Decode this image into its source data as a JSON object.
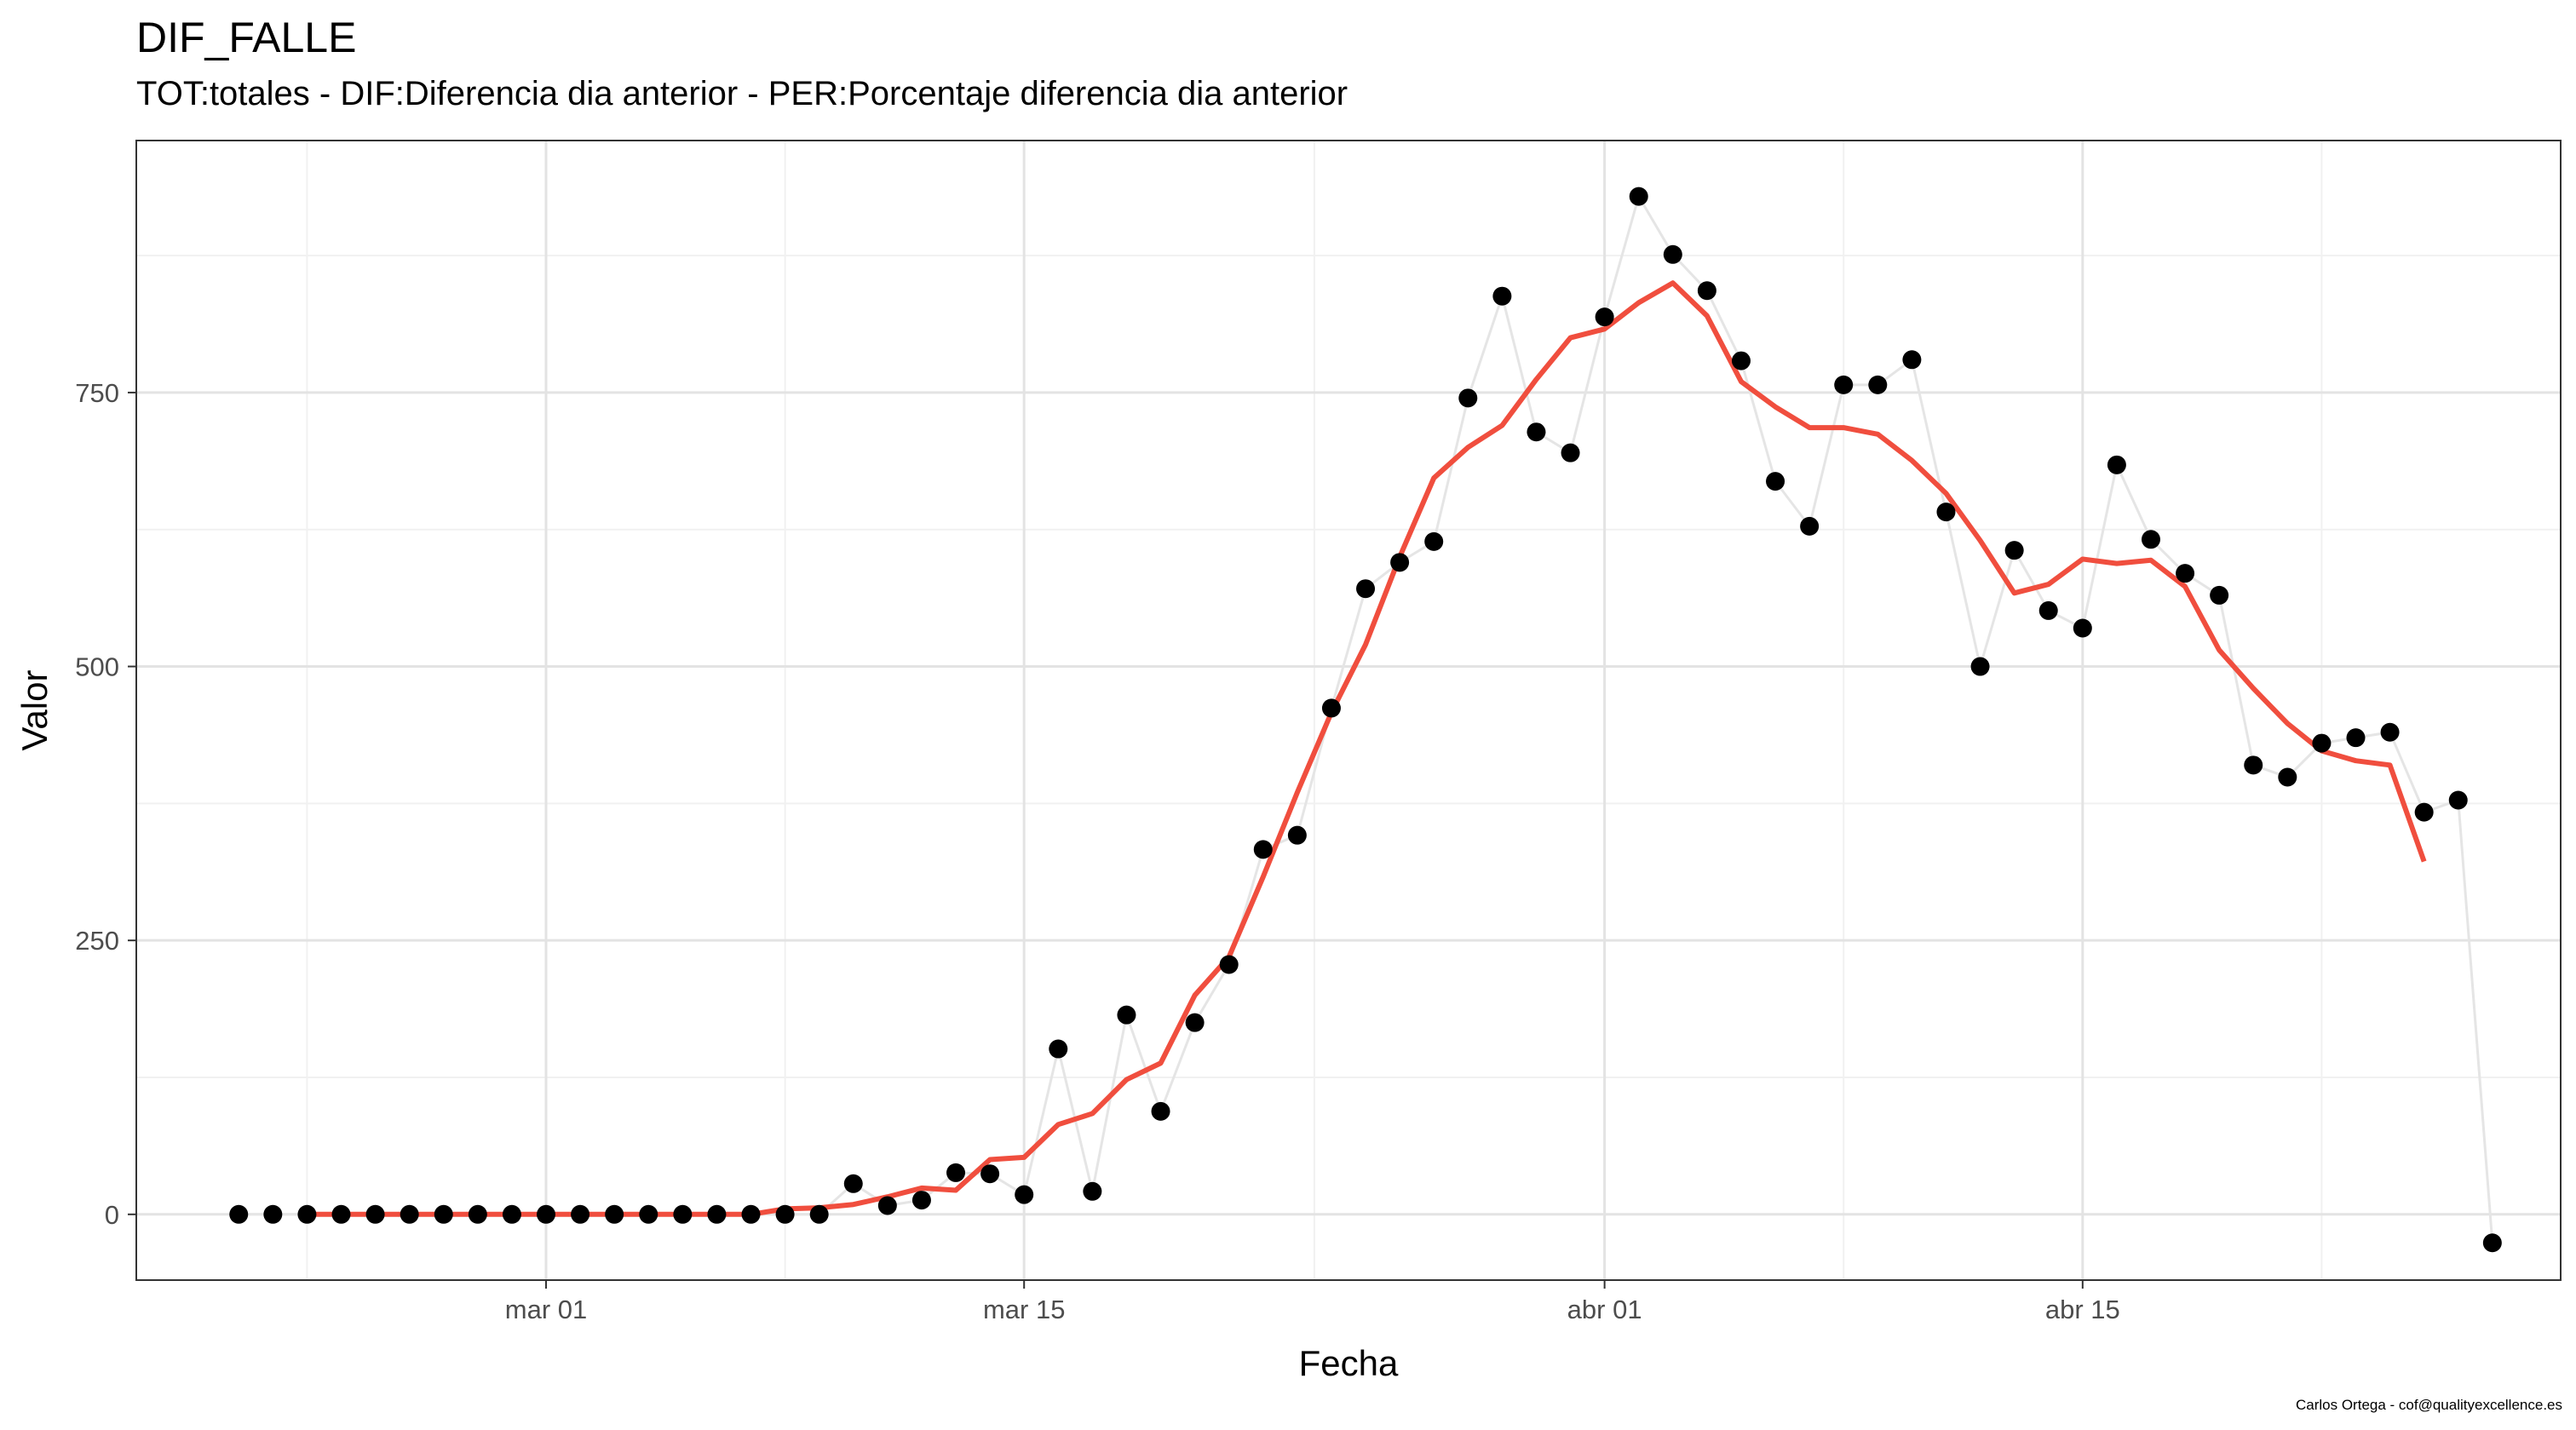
{
  "title": "DIF_FALLE",
  "subtitle": "TOT:totales - DIF:Diferencia dia anterior - PER:Porcentaje diferencia dia anterior",
  "caption": "Carlos Ortega - cof@qualityexcellence.es",
  "colors": {
    "points": "#000000",
    "raw_line": "#e5e5e5",
    "smooth_line": "#f04e3e",
    "grid_major": "#e3e3e3",
    "grid_minor": "#f1f1f1",
    "panel_border": "#333333",
    "tick_text": "#4d4d4d"
  },
  "chart_data": {
    "type": "line",
    "title": "DIF_FALLE",
    "subtitle": "TOT:totales - DIF:Diferencia dia anterior - PER:Porcentaje diferencia dia anterior",
    "xlabel": "Fecha",
    "ylabel": "Valor",
    "x_type": "date",
    "x_start": "2020-02-21",
    "xlim": [
      "2020-02-18",
      "2020-04-29"
    ],
    "ylim": [
      -60,
      980
    ],
    "x_ticks": [
      {
        "date": "2020-03-01",
        "label": "mar 01"
      },
      {
        "date": "2020-03-15",
        "label": "mar 15"
      },
      {
        "date": "2020-04-01",
        "label": "abr 01"
      },
      {
        "date": "2020-04-15",
        "label": "abr 15"
      }
    ],
    "y_ticks": [
      0,
      250,
      500,
      750
    ],
    "grid": true,
    "series": [
      {
        "style": "points-with-line",
        "values": [
          0,
          0,
          0,
          0,
          0,
          0,
          0,
          0,
          0,
          0,
          0,
          0,
          0,
          0,
          0,
          0,
          0,
          0,
          28,
          8,
          13,
          38,
          37,
          18,
          151,
          21,
          182,
          94,
          175,
          228,
          333,
          346,
          462,
          571,
          595,
          614,
          745,
          838,
          714,
          695,
          819,
          929,
          876,
          843,
          779,
          669,
          628,
          757,
          757,
          780,
          641,
          500,
          606,
          551,
          535,
          684,
          616,
          585,
          565,
          410,
          399,
          430,
          435,
          440,
          367,
          378,
          -26
        ]
      },
      {
        "style": "smooth-line",
        "start_date": "2020-02-23",
        "values": [
          0,
          0,
          0,
          0,
          0,
          0,
          0,
          0,
          0,
          0,
          0,
          0,
          0,
          0,
          5,
          6,
          9,
          16,
          24,
          22,
          50,
          52,
          82,
          92,
          123,
          138,
          200,
          235,
          308,
          385,
          458,
          520,
          600,
          672,
          700,
          720,
          762,
          800,
          808,
          832,
          850,
          820,
          760,
          737,
          718,
          718,
          712,
          688,
          658,
          615,
          567,
          575,
          598,
          594,
          597,
          573,
          515,
          480,
          448,
          423,
          414,
          410,
          322
        ]
      }
    ]
  }
}
